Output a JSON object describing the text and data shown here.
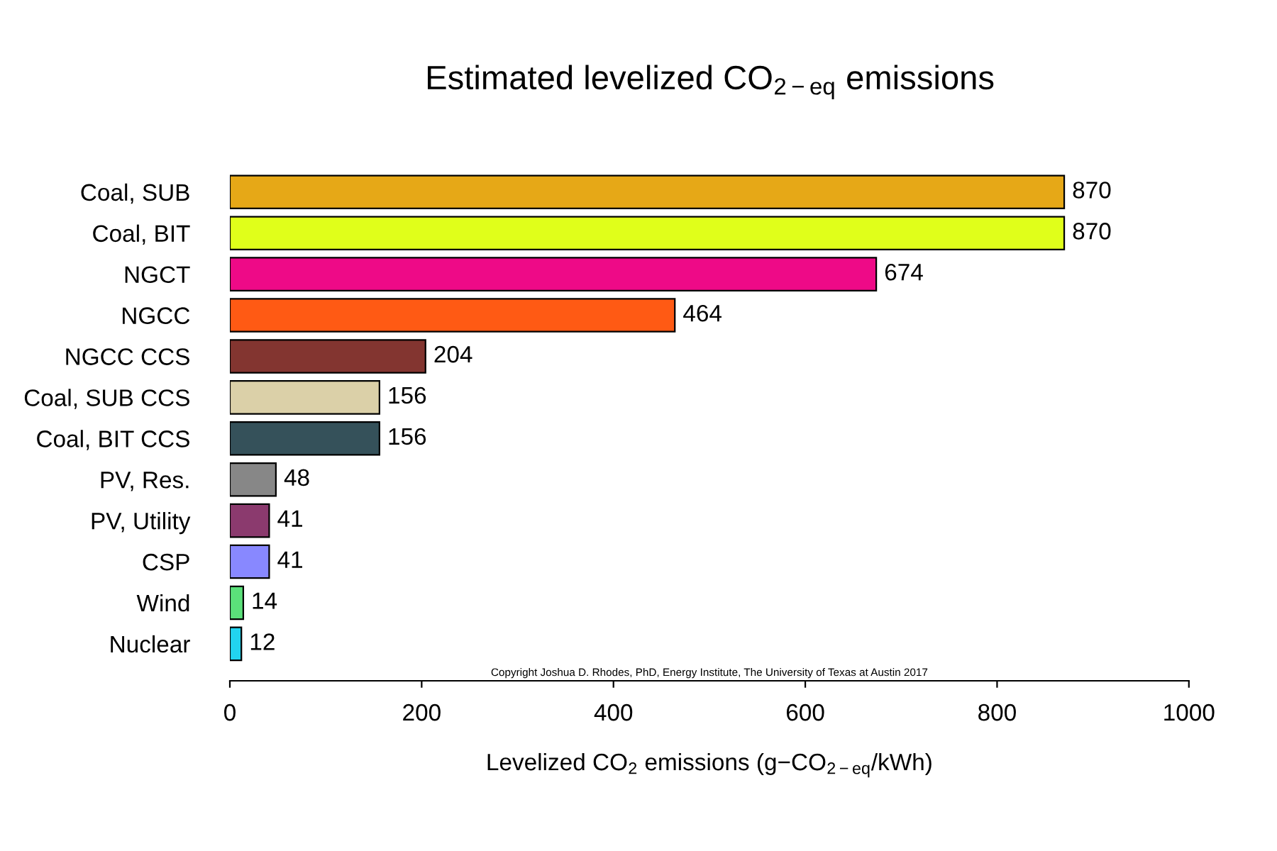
{
  "chart_data": {
    "type": "bar",
    "orientation": "horizontal",
    "title": "Estimated levelized CO$_{2−eq}$ emissions",
    "xlabel": "Levelized CO$_{2}$ emissions (g−CO$_{2−eq}$/kWh)",
    "categories": [
      "Coal, SUB",
      "Coal, BIT",
      "NGCT",
      "NGCC",
      "NGCC CCS",
      "Coal, SUB CCS",
      "Coal, BIT CCS",
      "PV, Res.",
      "PV, Utility",
      "CSP",
      "Wind",
      "Nuclear"
    ],
    "values": [
      870,
      870,
      674,
      464,
      204,
      156,
      156,
      48,
      41,
      41,
      14,
      12
    ],
    "colors": [
      "#e6a817",
      "#e0ff1a",
      "#ee0a87",
      "#ff5a14",
      "#833530",
      "#dbd0a8",
      "#35515a",
      "#878787",
      "#8b3a6e",
      "#8888ff",
      "#5be07a",
      "#22d4f0"
    ],
    "xlim": [
      0,
      1000
    ],
    "xticks": [
      0,
      200,
      400,
      600,
      800,
      1000
    ],
    "data_labels": true,
    "grid": false,
    "legend": false,
    "annotations": [
      "Copyright Joshua D. Rhodes, PhD, Energy Institute, The University of Texas at Austin 2017"
    ]
  }
}
